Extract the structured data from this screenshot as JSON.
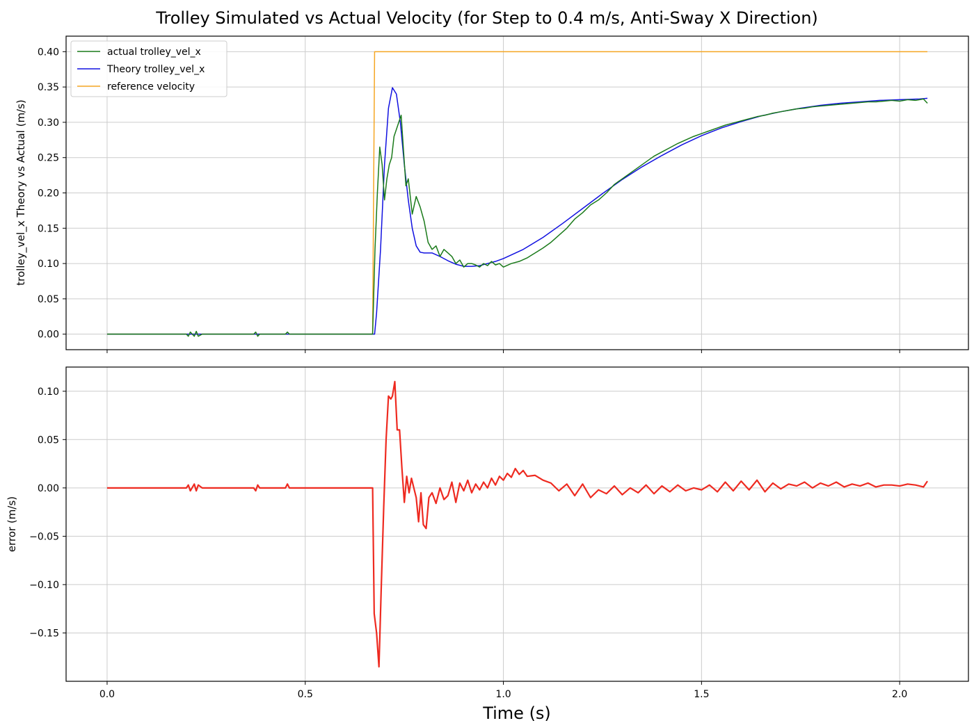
{
  "figure": {
    "title": "Trolley Simulated vs Actual Velocity (for Step to 0.4 m/s, Anti-Sway X Direction)",
    "xlabel": "Time (s)"
  },
  "chart_data": [
    {
      "type": "line",
      "ylabel": "trolley_vel_x Theory vs Actual (m/s)",
      "xlim": [
        -0.1035,
        2.1735
      ],
      "ylim": [
        -0.022,
        0.422
      ],
      "x_ticks": [
        0.0,
        0.5,
        1.0,
        1.5,
        2.0
      ],
      "y_ticks": [
        0.0,
        0.05,
        0.1,
        0.15,
        0.2,
        0.25,
        0.3,
        0.35,
        0.4
      ],
      "y_tick_labels": [
        "0.00",
        "0.05",
        "0.10",
        "0.15",
        "0.20",
        "0.25",
        "0.30",
        "0.35",
        "0.40"
      ],
      "grid": true,
      "legend": "top-left",
      "series": [
        {
          "name": "actual trolley_vel_x",
          "color": "#1a7a1a",
          "x": [
            0.0,
            0.2,
            0.205,
            0.21,
            0.22,
            0.225,
            0.23,
            0.24,
            0.37,
            0.375,
            0.38,
            0.385,
            0.45,
            0.455,
            0.46,
            0.67,
            0.676,
            0.682,
            0.688,
            0.694,
            0.7,
            0.706,
            0.712,
            0.718,
            0.724,
            0.73,
            0.736,
            0.742,
            0.748,
            0.754,
            0.76,
            0.77,
            0.78,
            0.79,
            0.8,
            0.81,
            0.82,
            0.83,
            0.84,
            0.85,
            0.86,
            0.87,
            0.88,
            0.89,
            0.9,
            0.91,
            0.92,
            0.93,
            0.94,
            0.95,
            0.96,
            0.97,
            0.98,
            0.99,
            1.0,
            1.02,
            1.04,
            1.06,
            1.08,
            1.1,
            1.12,
            1.14,
            1.16,
            1.18,
            1.2,
            1.22,
            1.24,
            1.26,
            1.28,
            1.3,
            1.32,
            1.34,
            1.36,
            1.38,
            1.4,
            1.42,
            1.44,
            1.46,
            1.48,
            1.5,
            1.52,
            1.54,
            1.56,
            1.58,
            1.6,
            1.62,
            1.64,
            1.66,
            1.68,
            1.7,
            1.72,
            1.74,
            1.76,
            1.78,
            1.8,
            1.82,
            1.84,
            1.86,
            1.88,
            1.9,
            1.92,
            1.94,
            1.96,
            1.98,
            2.0,
            2.02,
            2.04,
            2.06,
            2.07
          ],
          "values": [
            0.0,
            0.0,
            -0.003,
            0.003,
            -0.003,
            0.004,
            -0.003,
            0.0,
            0.0,
            0.003,
            -0.003,
            0.0,
            0.0,
            0.003,
            0.0,
            0.0,
            0.12,
            0.2,
            0.265,
            0.24,
            0.19,
            0.22,
            0.24,
            0.25,
            0.28,
            0.29,
            0.3,
            0.31,
            0.26,
            0.21,
            0.22,
            0.17,
            0.195,
            0.18,
            0.16,
            0.13,
            0.12,
            0.125,
            0.11,
            0.12,
            0.115,
            0.11,
            0.1,
            0.105,
            0.095,
            0.1,
            0.1,
            0.098,
            0.095,
            0.1,
            0.097,
            0.103,
            0.098,
            0.1,
            0.095,
            0.1,
            0.103,
            0.108,
            0.115,
            0.122,
            0.13,
            0.14,
            0.15,
            0.163,
            0.172,
            0.183,
            0.19,
            0.2,
            0.212,
            0.22,
            0.228,
            0.236,
            0.244,
            0.252,
            0.258,
            0.264,
            0.27,
            0.275,
            0.28,
            0.284,
            0.288,
            0.292,
            0.296,
            0.299,
            0.302,
            0.305,
            0.308,
            0.31,
            0.313,
            0.315,
            0.317,
            0.319,
            0.32,
            0.322,
            0.323,
            0.324,
            0.325,
            0.326,
            0.327,
            0.328,
            0.329,
            0.329,
            0.33,
            0.331,
            0.33,
            0.332,
            0.331,
            0.333,
            0.327
          ]
        },
        {
          "name": "Theory trolley_vel_x",
          "color": "#1010e0",
          "x": [
            0.0,
            0.67,
            0.675,
            0.68,
            0.69,
            0.7,
            0.71,
            0.72,
            0.73,
            0.74,
            0.75,
            0.76,
            0.77,
            0.78,
            0.79,
            0.8,
            0.82,
            0.84,
            0.86,
            0.88,
            0.9,
            0.92,
            0.94,
            0.96,
            0.98,
            1.0,
            1.05,
            1.1,
            1.15,
            1.2,
            1.25,
            1.3,
            1.35,
            1.4,
            1.45,
            1.5,
            1.55,
            1.6,
            1.65,
            1.7,
            1.75,
            1.8,
            1.85,
            1.9,
            1.95,
            2.0,
            2.05,
            2.07
          ],
          "values": [
            0.0,
            0.0,
            0.0,
            0.03,
            0.12,
            0.24,
            0.32,
            0.349,
            0.34,
            0.3,
            0.24,
            0.19,
            0.15,
            0.125,
            0.116,
            0.115,
            0.115,
            0.11,
            0.104,
            0.099,
            0.096,
            0.096,
            0.097,
            0.1,
            0.103,
            0.107,
            0.12,
            0.137,
            0.157,
            0.178,
            0.199,
            0.219,
            0.237,
            0.253,
            0.268,
            0.281,
            0.292,
            0.301,
            0.309,
            0.315,
            0.32,
            0.324,
            0.327,
            0.329,
            0.331,
            0.332,
            0.333,
            0.334
          ]
        },
        {
          "name": "reference velocity",
          "color": "#f5a623",
          "x": [
            0.0,
            0.67,
            0.675,
            2.07
          ],
          "values": [
            0.0,
            0.0,
            0.4,
            0.4
          ]
        }
      ]
    },
    {
      "type": "line",
      "ylabel": "error (m/s)",
      "xlim": [
        -0.1035,
        2.1735
      ],
      "ylim": [
        -0.2,
        0.125
      ],
      "x_ticks": [
        0.0,
        0.5,
        1.0,
        1.5,
        2.0
      ],
      "x_tick_labels": [
        "0.0",
        "0.5",
        "1.0",
        "1.5",
        "2.0"
      ],
      "y_ticks": [
        -0.15,
        -0.1,
        -0.05,
        0.0,
        0.05,
        0.1
      ],
      "y_tick_labels": [
        "−0.15",
        "−0.10",
        "−0.05",
        "0.00",
        "0.05",
        "0.10"
      ],
      "grid": true,
      "series": [
        {
          "color": "#ee2a20",
          "x": [
            0.0,
            0.2,
            0.205,
            0.21,
            0.22,
            0.225,
            0.23,
            0.24,
            0.37,
            0.375,
            0.38,
            0.385,
            0.45,
            0.455,
            0.46,
            0.67,
            0.674,
            0.68,
            0.686,
            0.692,
            0.698,
            0.704,
            0.71,
            0.716,
            0.72,
            0.726,
            0.732,
            0.738,
            0.744,
            0.75,
            0.756,
            0.762,
            0.768,
            0.774,
            0.78,
            0.786,
            0.792,
            0.798,
            0.805,
            0.812,
            0.82,
            0.83,
            0.84,
            0.85,
            0.86,
            0.87,
            0.88,
            0.89,
            0.9,
            0.91,
            0.92,
            0.93,
            0.94,
            0.95,
            0.96,
            0.97,
            0.98,
            0.99,
            1.0,
            1.01,
            1.02,
            1.03,
            1.04,
            1.05,
            1.06,
            1.08,
            1.1,
            1.12,
            1.14,
            1.16,
            1.18,
            1.2,
            1.22,
            1.24,
            1.26,
            1.28,
            1.3,
            1.32,
            1.34,
            1.36,
            1.38,
            1.4,
            1.42,
            1.44,
            1.46,
            1.48,
            1.5,
            1.52,
            1.54,
            1.56,
            1.58,
            1.6,
            1.62,
            1.64,
            1.66,
            1.68,
            1.7,
            1.72,
            1.74,
            1.76,
            1.78,
            1.8,
            1.82,
            1.84,
            1.86,
            1.88,
            1.9,
            1.92,
            1.94,
            1.96,
            1.98,
            2.0,
            2.02,
            2.04,
            2.06,
            2.07
          ],
          "values": [
            0.0,
            0.0,
            0.003,
            -0.003,
            0.004,
            -0.003,
            0.003,
            0.0,
            0.0,
            -0.003,
            0.003,
            0.0,
            0.0,
            0.004,
            0.0,
            0.0,
            -0.13,
            -0.15,
            -0.185,
            -0.1,
            -0.02,
            0.05,
            0.095,
            0.092,
            0.095,
            0.11,
            0.06,
            0.06,
            0.02,
            -0.015,
            0.012,
            -0.005,
            0.01,
            0.0,
            -0.01,
            -0.035,
            -0.005,
            -0.038,
            -0.042,
            -0.01,
            -0.005,
            -0.016,
            0.0,
            -0.012,
            -0.008,
            0.006,
            -0.015,
            0.005,
            -0.003,
            0.008,
            -0.005,
            0.004,
            -0.002,
            0.006,
            0.0,
            0.01,
            0.003,
            0.012,
            0.008,
            0.015,
            0.011,
            0.02,
            0.014,
            0.018,
            0.012,
            0.013,
            0.008,
            0.005,
            -0.003,
            0.004,
            -0.008,
            0.004,
            -0.01,
            -0.002,
            -0.006,
            0.002,
            -0.007,
            0.0,
            -0.005,
            0.003,
            -0.006,
            0.002,
            -0.004,
            0.003,
            -0.003,
            0.0,
            -0.002,
            0.003,
            -0.004,
            0.006,
            -0.003,
            0.007,
            -0.002,
            0.008,
            -0.004,
            0.005,
            -0.001,
            0.004,
            0.002,
            0.006,
            0.0,
            0.005,
            0.002,
            0.006,
            0.001,
            0.004,
            0.002,
            0.005,
            0.001,
            0.003,
            0.003,
            0.002,
            0.004,
            0.003,
            0.001,
            0.007
          ]
        }
      ]
    }
  ]
}
